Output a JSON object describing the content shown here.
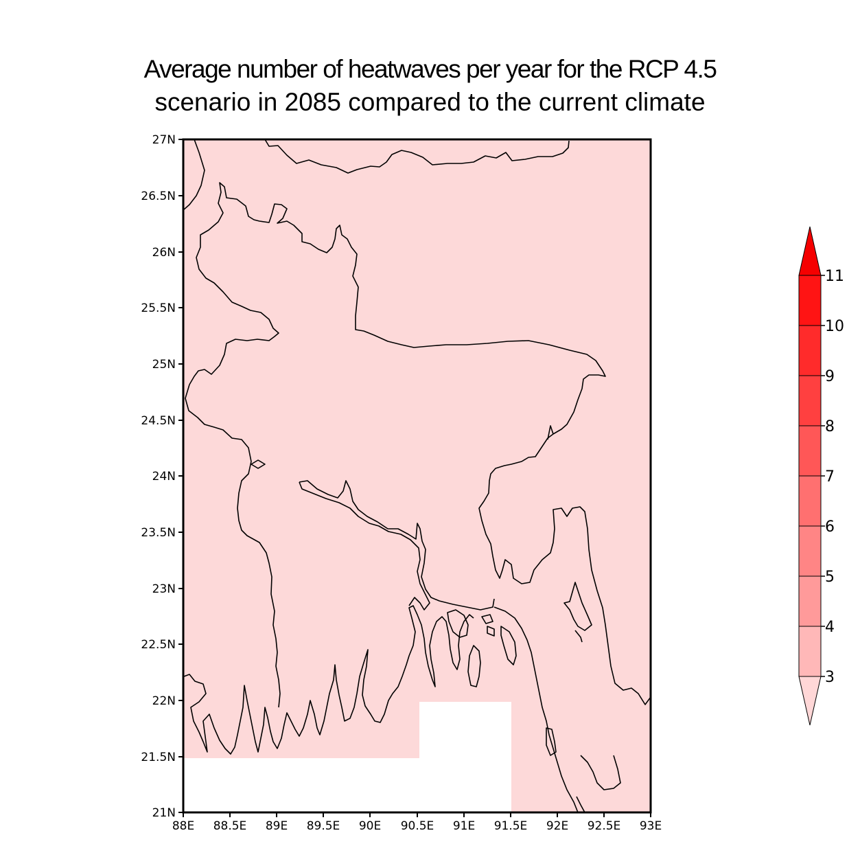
{
  "title": {
    "line1": "Average number of heatwaves per year for the RCP 4.5",
    "line2": "scenario in 2085 compared to the current climate"
  },
  "map": {
    "lon_range": [
      88,
      93
    ],
    "lat_range": [
      21,
      27
    ],
    "x_ticks": [
      "88E",
      "88.5E",
      "89E",
      "89.5E",
      "90E",
      "90.5E",
      "91E",
      "91.5E",
      "92E",
      "92.5E",
      "93E"
    ],
    "y_ticks": [
      "21N",
      "21.5N",
      "22N",
      "22.5N",
      "23N",
      "23.5N",
      "24N",
      "24.5N",
      "25N",
      "25.5N",
      "26N",
      "26.5N",
      "27N"
    ],
    "fill_value_class": "3-4",
    "fill_color": "#FDD9D9",
    "missing_data_color": "#FFFFFF"
  },
  "colorbar": {
    "levels": [
      "3",
      "4",
      "5",
      "6",
      "7",
      "8",
      "9",
      "10",
      "11"
    ],
    "colors": [
      "#FFD7D7",
      "#FFB8B8",
      "#FF9A9A",
      "#FF8585",
      "#FF7070",
      "#FF5757",
      "#FF4040",
      "#FF2B2B",
      "#FF1414",
      "#F50000"
    ]
  }
}
